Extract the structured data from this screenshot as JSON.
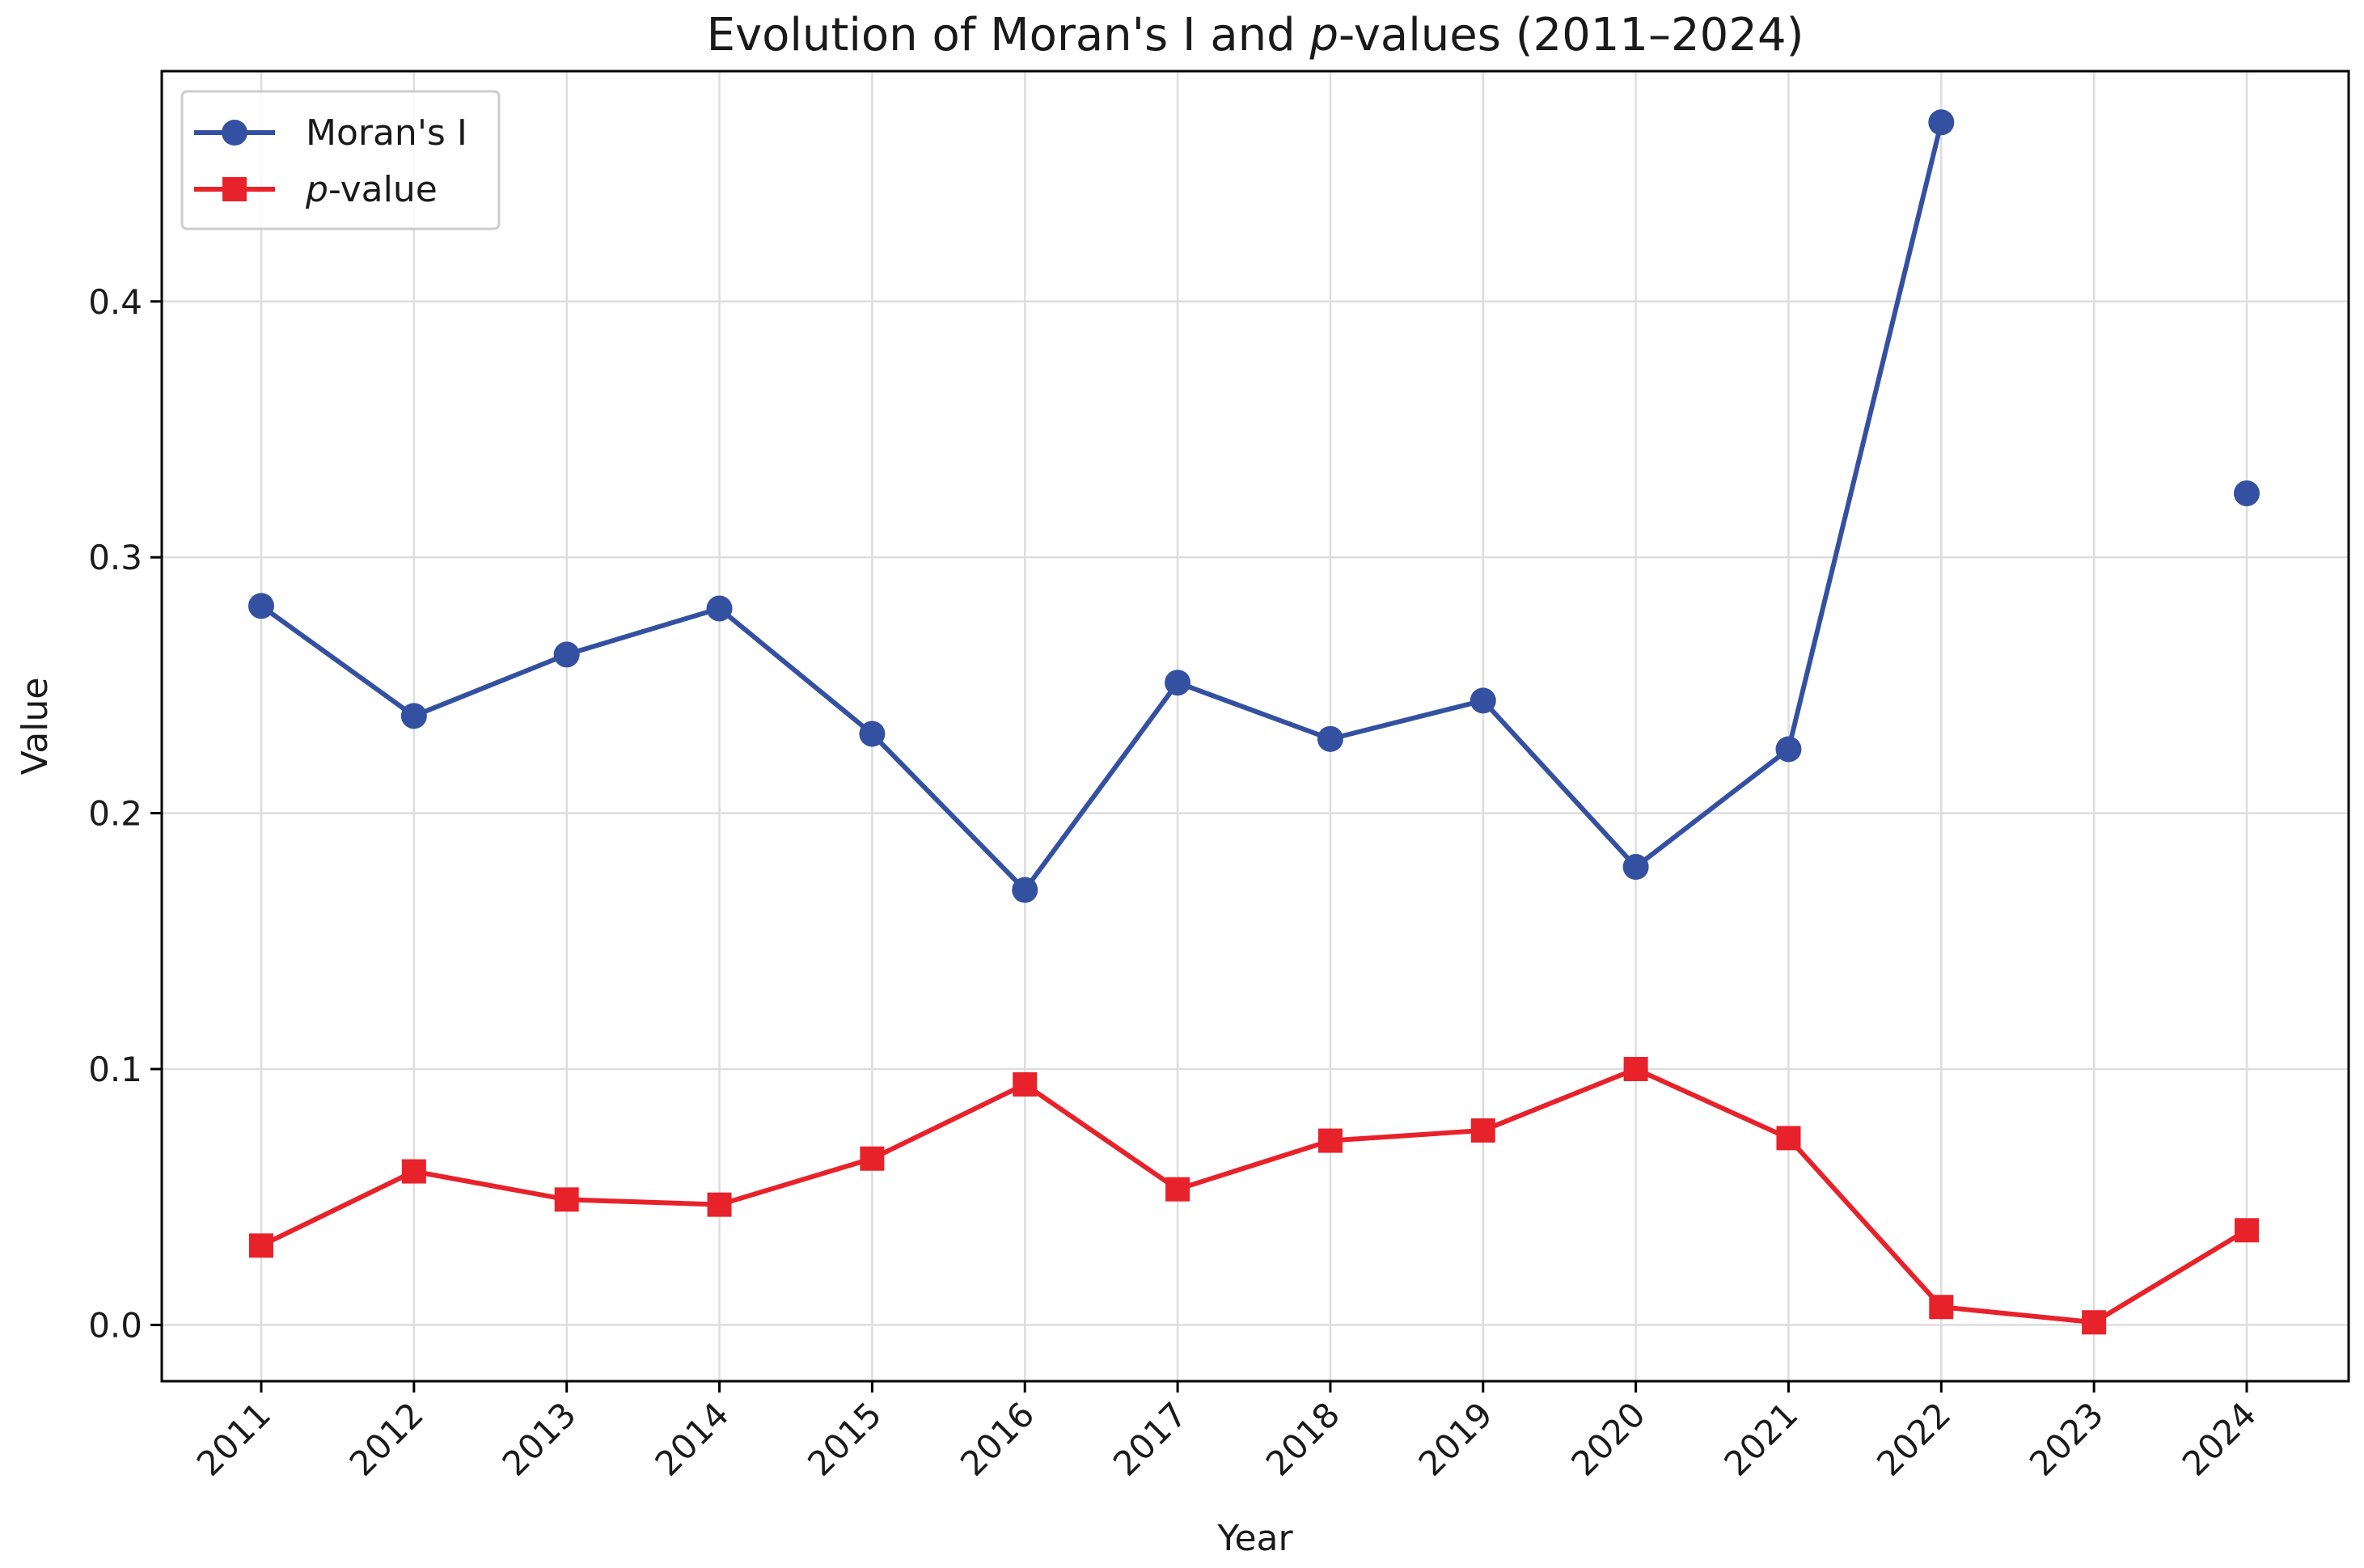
{
  "chart_data": {
    "type": "line",
    "title_prefix": "Evolution of Moran's I and ",
    "title_italic": "p",
    "title_suffix": "-values (2011–2024)",
    "xlabel": "Year",
    "ylabel": "Value",
    "categories": [
      "2011",
      "2012",
      "2013",
      "2014",
      "2015",
      "2016",
      "2017",
      "2018",
      "2019",
      "2020",
      "2021",
      "2022",
      "2023",
      "2024"
    ],
    "ylim": [
      -0.022,
      0.49
    ],
    "yticks": [
      0.0,
      0.1,
      0.2,
      0.3,
      0.4
    ],
    "ytick_labels": [
      "0.0",
      "0.1",
      "0.2",
      "0.3",
      "0.4"
    ],
    "grid": true,
    "legend_position": "top-left",
    "series": [
      {
        "name": "Moran's I",
        "legend_italic": "",
        "legend_rest": "Moran's I",
        "color": "#3451a1",
        "marker": "circle",
        "values": [
          0.281,
          0.238,
          0.262,
          0.28,
          0.231,
          0.17,
          0.251,
          0.229,
          0.244,
          0.179,
          0.225,
          0.47,
          null,
          0.325
        ]
      },
      {
        "name": "p-value",
        "legend_italic": "p",
        "legend_rest": "-value",
        "color": "#e8222a",
        "marker": "square",
        "values": [
          0.031,
          0.06,
          0.049,
          0.047,
          0.065,
          0.094,
          0.053,
          0.072,
          0.076,
          0.1,
          0.073,
          0.007,
          0.001,
          0.037
        ]
      }
    ]
  }
}
